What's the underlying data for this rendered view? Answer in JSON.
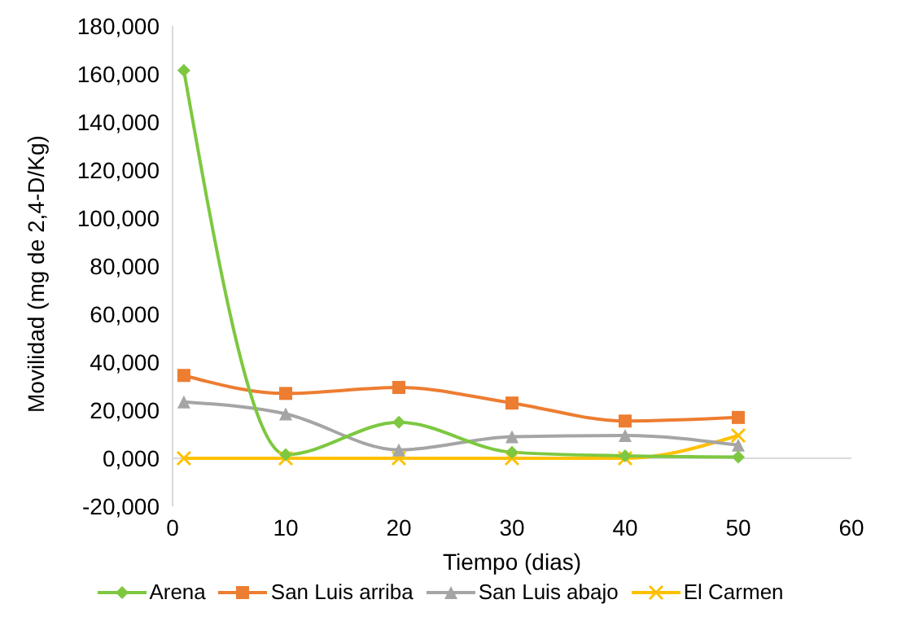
{
  "chart_data": {
    "type": "line",
    "xlabel": "Tiempo (dias)",
    "ylabel": "Movilidad (mg de 2,4-D/Kg)",
    "x": [
      1,
      10,
      20,
      30,
      40,
      50
    ],
    "series": [
      {
        "name": "Arena",
        "color": "#7dc840",
        "marker": "diamond",
        "values": [
          161.5,
          1.5,
          15,
          2.5,
          1,
          0.5
        ]
      },
      {
        "name": "San Luis arriba",
        "color": "#ed7d31",
        "marker": "square",
        "values": [
          34.5,
          27,
          29.5,
          23,
          15.5,
          17
        ]
      },
      {
        "name": "San Luis abajo",
        "color": "#a5a5a5",
        "marker": "triangle",
        "values": [
          23.5,
          18.5,
          3.5,
          9,
          9.5,
          5.5
        ]
      },
      {
        "name": "El Carmen",
        "color": "#ffc000",
        "marker": "cross",
        "values": [
          0,
          0,
          0,
          0,
          0,
          9.5
        ]
      }
    ],
    "xlim": [
      0,
      60
    ],
    "xticks": [
      0,
      10,
      20,
      30,
      40,
      50,
      60
    ],
    "ylim": [
      -20,
      180
    ],
    "yticks": [
      {
        "value": -20,
        "label": "-20,000"
      },
      {
        "value": 0,
        "label": "0,000"
      },
      {
        "value": 20,
        "label": "20,000"
      },
      {
        "value": 40,
        "label": "40,000"
      },
      {
        "value": 60,
        "label": "60,000"
      },
      {
        "value": 80,
        "label": "80,000"
      },
      {
        "value": 100,
        "label": "100,000"
      },
      {
        "value": 120,
        "label": "120,000"
      },
      {
        "value": 140,
        "label": "140,000"
      },
      {
        "value": 160,
        "label": "160,000"
      },
      {
        "value": 180,
        "label": "180,000"
      }
    ],
    "grid": false,
    "legend": "bottom"
  }
}
